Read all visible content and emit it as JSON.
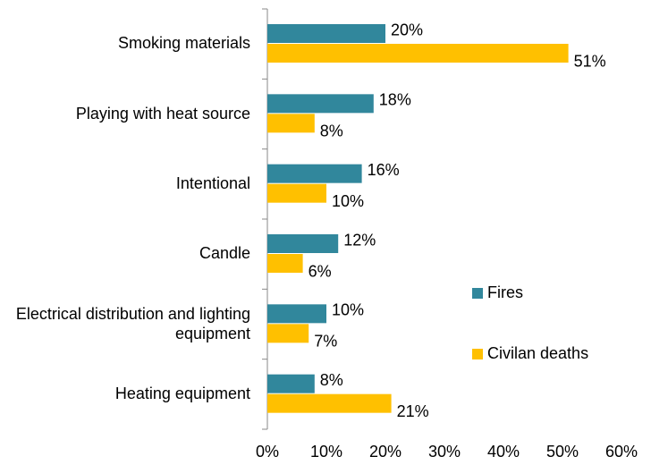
{
  "chart_data": {
    "type": "bar",
    "orientation": "horizontal",
    "categories": [
      "Smoking materials",
      "Playing with heat source",
      "Intentional",
      "Candle",
      "Electrical distribution and lighting equipment",
      "Heating equipment"
    ],
    "series": [
      {
        "name": "Fires",
        "color": "#31879c",
        "values": [
          20,
          18,
          16,
          12,
          10,
          8
        ],
        "value_labels": [
          "20%",
          "18%",
          "16%",
          "12%",
          "10%",
          "8%"
        ]
      },
      {
        "name": "Civilan deaths",
        "color": "#ffc000",
        "values": [
          51,
          8,
          10,
          6,
          7,
          21
        ],
        "value_labels": [
          "51%",
          "8%",
          "10%",
          "6%",
          "7%",
          "21%"
        ]
      }
    ],
    "xlim": [
      0,
      60
    ],
    "xticks": [
      {
        "value": 0,
        "label": "0%"
      },
      {
        "value": 10,
        "label": "10%"
      },
      {
        "value": 20,
        "label": "20%"
      },
      {
        "value": 30,
        "label": "30%"
      },
      {
        "value": 40,
        "label": "40%"
      },
      {
        "value": 50,
        "label": "50%"
      },
      {
        "value": 60,
        "label": "60%"
      }
    ],
    "legend": "right"
  }
}
